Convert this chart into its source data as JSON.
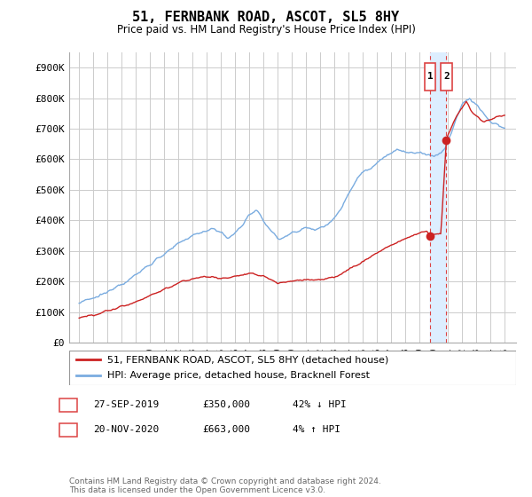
{
  "title": "51, FERNBANK ROAD, ASCOT, SL5 8HY",
  "subtitle": "Price paid vs. HM Land Registry's House Price Index (HPI)",
  "ylim": [
    0,
    950000
  ],
  "yticks": [
    0,
    100000,
    200000,
    300000,
    400000,
    500000,
    600000,
    700000,
    800000,
    900000
  ],
  "ytick_labels": [
    "£0",
    "£100K",
    "£200K",
    "£300K",
    "£400K",
    "£500K",
    "£600K",
    "£700K",
    "£800K",
    "£900K"
  ],
  "hpi_color": "#7aace0",
  "price_color": "#cc2222",
  "vline_color": "#dd4444",
  "shade_color": "#ddeeff",
  "grid_color": "#cccccc",
  "background_color": "#ffffff",
  "legend_label_red": "51, FERNBANK ROAD, ASCOT, SL5 8HY (detached house)",
  "legend_label_blue": "HPI: Average price, detached house, Bracknell Forest",
  "transaction1_label": "1",
  "transaction1_date": "27-SEP-2019",
  "transaction1_price": "£350,000",
  "transaction1_rel": "42% ↓ HPI",
  "transaction2_label": "2",
  "transaction2_date": "20-NOV-2020",
  "transaction2_price": "£663,000",
  "transaction2_rel": "4% ↑ HPI",
  "footnote": "Contains HM Land Registry data © Crown copyright and database right 2024.\nThis data is licensed under the Open Government Licence v3.0.",
  "vline1_x": 2019.74,
  "vline2_x": 2020.89,
  "marker_price_y": 350000,
  "marker2_price_y": 663000,
  "xlim_left": 1994.3,
  "xlim_right": 2025.8
}
